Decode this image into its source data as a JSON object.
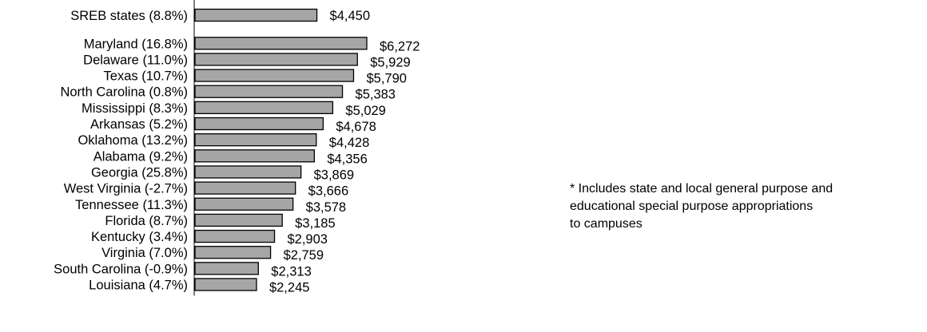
{
  "chart_data": {
    "type": "bar",
    "orientation": "horizontal",
    "categories": [
      "SREB states (8.8%)",
      "Maryland (16.8%)",
      "Delaware (11.0%)",
      "Texas (10.7%)",
      "North Carolina (0.8%)",
      "Mississippi (8.3%)",
      "Arkansas (5.2%)",
      "Oklahoma (13.2%)",
      "Alabama (9.2%)",
      "Georgia (25.8%)",
      "West Virginia (-2.7%)",
      "Tennessee (11.3%)",
      "Florida (8.7%)",
      "Kentucky (3.4%)",
      "Virginia (7.0%)",
      "South Carolina (-0.9%)",
      "Louisiana (4.7%)"
    ],
    "values": [
      4450,
      6272,
      5929,
      5790,
      5383,
      5029,
      4678,
      4428,
      4356,
      3869,
      3666,
      3578,
      3185,
      2903,
      2759,
      2313,
      2245
    ],
    "data_labels": [
      "$4,450",
      "$6,272",
      "$5,929",
      "$5,790",
      "$5,383",
      "$5,029",
      "$4,678",
      "$4,428",
      "$4,356",
      "$3,869",
      "$3,666",
      "$3,578",
      "$3,185",
      "$2,903",
      "$2,759",
      "$2,313",
      "$2,245"
    ],
    "title": "",
    "xlabel": "",
    "ylabel": "",
    "grid": false,
    "legend": "none",
    "bar_color": "#a6a6a6",
    "bar_edge_color": "#000000"
  },
  "footnote": "* Includes state and local general purpose and\n educational special purpose appropriations\n to campuses"
}
